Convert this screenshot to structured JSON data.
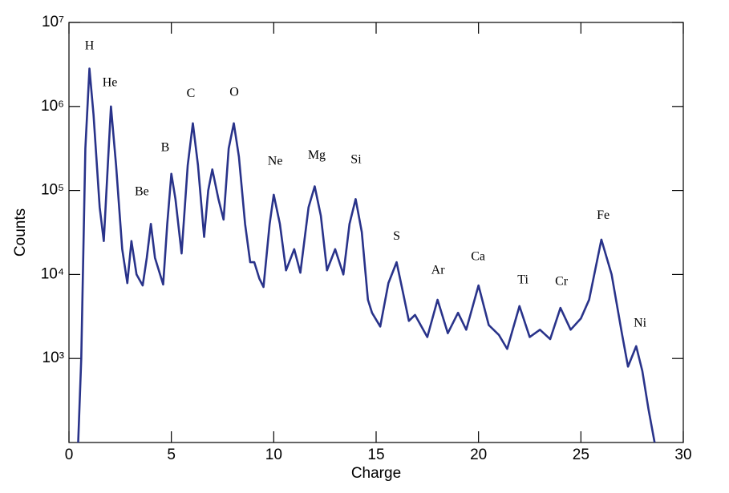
{
  "chart_data": {
    "type": "line",
    "x_label": "Charge",
    "y_label": "Counts",
    "log_y": true,
    "color": "#29338a",
    "xlim": [
      0,
      30
    ],
    "xticks": [
      0,
      5,
      10,
      15,
      20,
      25,
      30
    ],
    "ylim": [
      100,
      10000000
    ],
    "yticks": [
      {
        "value": 1000,
        "label": "10³"
      },
      {
        "value": 10000,
        "label": "10⁴"
      },
      {
        "value": 100000,
        "label": "10⁵"
      },
      {
        "value": 1000000,
        "label": "10⁶"
      },
      {
        "value": 10000000,
        "label": "10⁷"
      }
    ],
    "x": [
      0.45,
      0.6,
      0.8,
      1.0,
      1.2,
      1.5,
      1.7,
      2.05,
      2.3,
      2.6,
      2.85,
      3.05,
      3.3,
      3.6,
      3.8,
      4.0,
      4.2,
      4.6,
      4.8,
      5.0,
      5.2,
      5.5,
      5.8,
      6.05,
      6.3,
      6.6,
      6.8,
      7.0,
      7.3,
      7.55,
      7.8,
      8.05,
      8.3,
      8.6,
      8.85,
      9.05,
      9.3,
      9.5,
      9.8,
      10.0,
      10.3,
      10.6,
      11.0,
      11.3,
      11.7,
      12.0,
      12.3,
      12.6,
      13.0,
      13.4,
      13.7,
      14.0,
      14.3,
      14.6,
      14.8,
      15.2,
      15.6,
      16.0,
      16.3,
      16.6,
      16.9,
      17.5,
      18.0,
      18.5,
      19.0,
      19.4,
      20.0,
      20.5,
      21.0,
      21.4,
      22.0,
      22.5,
      23.0,
      23.5,
      24.0,
      24.5,
      25.0,
      25.4,
      26.0,
      26.5,
      27.0,
      27.3,
      27.7,
      28.0,
      28.3,
      28.6
    ],
    "values": [
      100,
      1000,
      316000,
      2820000,
      794000,
      63000,
      25000,
      1000000,
      200000,
      20000,
      7900,
      25000,
      10000,
      7400,
      15800,
      40000,
      15800,
      7600,
      40000,
      158000,
      79000,
      17800,
      200000,
      631000,
      200000,
      28000,
      100000,
      178000,
      79000,
      45000,
      316000,
      631000,
      251000,
      40000,
      14000,
      14000,
      8900,
      7100,
      40000,
      89000,
      40000,
      11200,
      20000,
      10500,
      63000,
      112000,
      50000,
      11200,
      20000,
      10000,
      40000,
      79000,
      32000,
      5000,
      3500,
      2400,
      7900,
      14000,
      6300,
      2800,
      3300,
      1800,
      5000,
      2000,
      3500,
      2200,
      7400,
      2500,
      1900,
      1300,
      4200,
      1800,
      2200,
      1700,
      4000,
      2200,
      3000,
      5000,
      26000,
      10000,
      2000,
      800,
      1400,
      710,
      250,
      100
    ],
    "annotations": [
      {
        "text": "H",
        "x": 1.0,
        "y": 5200000
      },
      {
        "text": "He",
        "x": 2.0,
        "y": 1900000
      },
      {
        "text": "Be",
        "x": 3.56,
        "y": 95000
      },
      {
        "text": "B",
        "x": 4.7,
        "y": 320000
      },
      {
        "text": "C",
        "x": 5.95,
        "y": 1400000
      },
      {
        "text": "O",
        "x": 8.07,
        "y": 1450000
      },
      {
        "text": "Ne",
        "x": 10.07,
        "y": 220000
      },
      {
        "text": "Mg",
        "x": 12.1,
        "y": 260000
      },
      {
        "text": "Si",
        "x": 14.02,
        "y": 230000
      },
      {
        "text": "S",
        "x": 16.0,
        "y": 28000
      },
      {
        "text": "Ar",
        "x": 18.02,
        "y": 11000
      },
      {
        "text": "Ca",
        "x": 19.98,
        "y": 16000
      },
      {
        "text": "Ti",
        "x": 22.17,
        "y": 8500
      },
      {
        "text": "Cr",
        "x": 24.05,
        "y": 8100
      },
      {
        "text": "Fe",
        "x": 26.09,
        "y": 50000
      },
      {
        "text": "Ni",
        "x": 27.89,
        "y": 2600
      }
    ]
  }
}
